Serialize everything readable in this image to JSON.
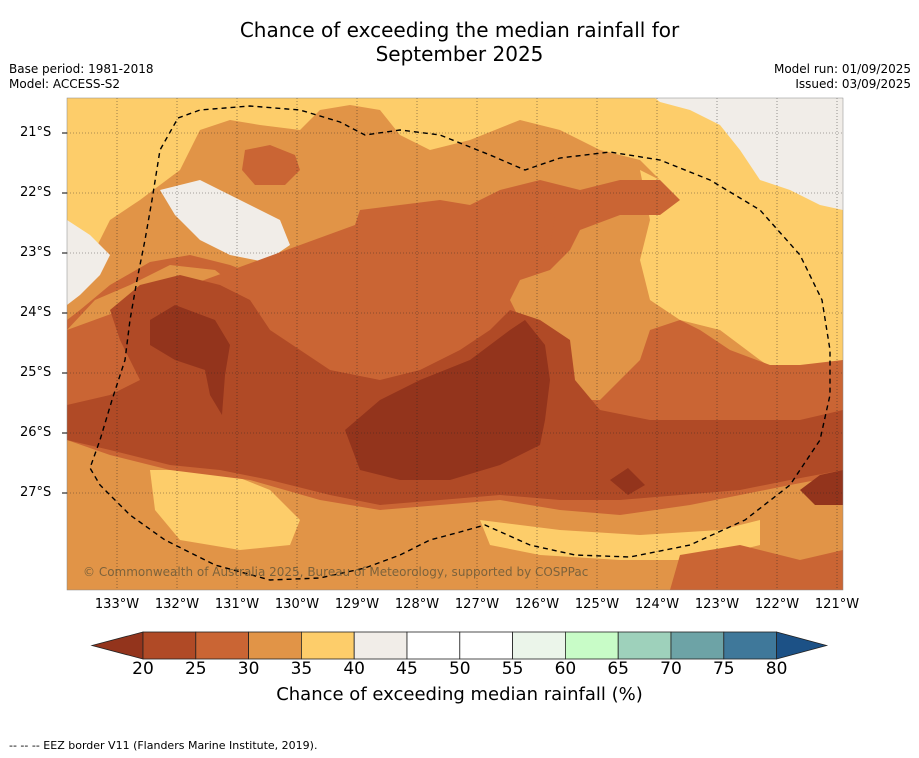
{
  "header": {
    "title_line1": "Chance of exceeding the median rainfall for",
    "title_line2": "September 2025",
    "base_period": "Base period: 1981-2018",
    "model": "Model: ACCESS-S2",
    "model_run": "Model run: 01/09/2025",
    "issued": "Issued: 03/09/2025"
  },
  "map": {
    "lat_labels": [
      "21°S",
      "22°S",
      "23°S",
      "24°S",
      "25°S",
      "26°S",
      "27°S"
    ],
    "lon_labels": [
      "133°W",
      "132°W",
      "131°W",
      "130°W",
      "129°W",
      "128°W",
      "127°W",
      "126°W",
      "125°W",
      "124°W",
      "123°W",
      "122°W",
      "121°W"
    ],
    "copyright": "© Commonwealth of Australia 2025, Bureau of Meteorology, supported by COSPPac",
    "colors": {
      "c20": "#93341c",
      "c25": "#b04a26",
      "c30": "#ca6534",
      "c35": "#e19447",
      "c40": "#fdcd6a",
      "c45": "#f1ede8"
    }
  },
  "colorbar": {
    "ticks": [
      "20",
      "25",
      "30",
      "35",
      "40",
      "45",
      "50",
      "55",
      "60",
      "65",
      "70",
      "75",
      "80"
    ],
    "colors": [
      "#93341c",
      "#b04a26",
      "#ca6534",
      "#e19447",
      "#fdcd6a",
      "#f1ede8",
      "#ffffff",
      "#ffffff",
      "#ebf5ea",
      "#c8fcc7",
      "#9ed1bb",
      "#6da3a6",
      "#3f789a",
      "#1c5186"
    ],
    "label": "Chance of exceeding median rainfall (%)"
  },
  "footnote": "--  --  -- EEZ border V11 (Flanders Marine Institute, 2019)."
}
